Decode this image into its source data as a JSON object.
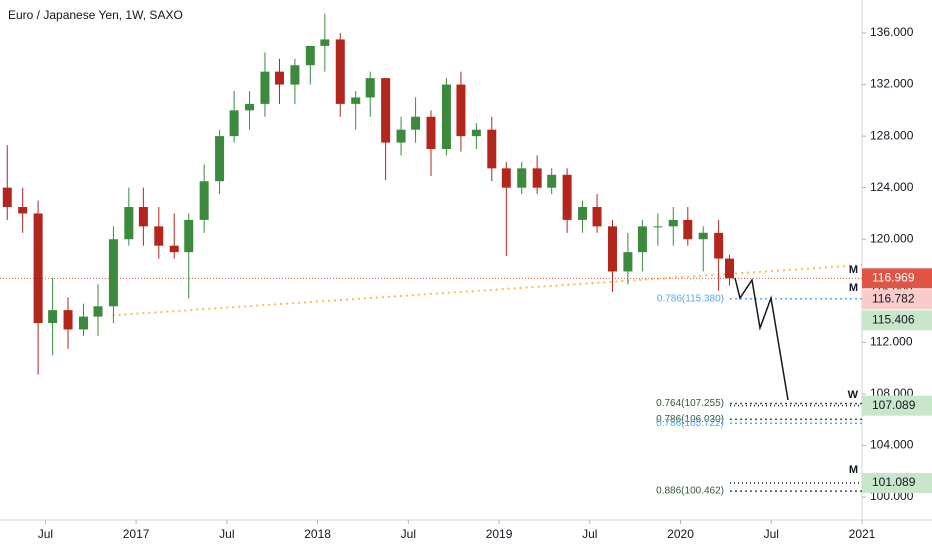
{
  "chart_data": {
    "type": "candlestick",
    "title": "Euro / Japanese Yen, 1W, SAXO",
    "up_color": "#3b8a3e",
    "down_color": "#b3261e",
    "x": [
      2016.29,
      2016.375,
      2016.46,
      2016.54,
      2016.625,
      2016.71,
      2016.79,
      2016.875,
      2016.96,
      2017.04,
      2017.125,
      2017.21,
      2017.29,
      2017.375,
      2017.46,
      2017.54,
      2017.625,
      2017.71,
      2017.79,
      2017.875,
      2017.96,
      2018.04,
      2018.125,
      2018.21,
      2018.29,
      2018.375,
      2018.46,
      2018.54,
      2018.625,
      2018.71,
      2018.79,
      2018.875,
      2018.96,
      2019.04,
      2019.125,
      2019.21,
      2019.29,
      2019.375,
      2019.46,
      2019.54,
      2019.625,
      2019.71,
      2019.79,
      2019.875,
      2019.96,
      2020.04,
      2020.125,
      2020.21,
      2020.27
    ],
    "open": [
      124.0,
      122.5,
      122.0,
      113.5,
      114.5,
      113.0,
      114.0,
      114.8,
      120.0,
      122.5,
      121.0,
      119.5,
      119.0,
      121.5,
      124.5,
      128.0,
      130.0,
      130.5,
      133.0,
      132.0,
      133.5,
      135.0,
      135.5,
      130.5,
      131.0,
      132.5,
      127.5,
      128.5,
      129.5,
      127.0,
      132.0,
      128.0,
      128.5,
      125.5,
      124.0,
      125.5,
      124.0,
      125.0,
      121.5,
      122.5,
      121.0,
      117.5,
      119.0,
      121.0,
      121.0,
      121.5,
      120.0,
      120.5,
      118.5
    ],
    "high": [
      127.3,
      124.0,
      123.0,
      117.0,
      115.5,
      115.0,
      116.5,
      121.0,
      124.0,
      124.0,
      122.5,
      122.0,
      122.0,
      125.8,
      128.5,
      131.5,
      131.5,
      134.5,
      134.0,
      134.0,
      135.0,
      137.5,
      136.0,
      131.5,
      133.0,
      132.5,
      129.5,
      131.0,
      130.0,
      132.5,
      133.0,
      129.0,
      129.5,
      126.0,
      126.0,
      126.5,
      125.5,
      125.5,
      123.0,
      123.5,
      121.5,
      120.5,
      121.5,
      122.0,
      122.5,
      122.5,
      121.0,
      121.5,
      118.8
    ],
    "low": [
      121.5,
      120.5,
      109.5,
      111.0,
      111.5,
      112.5,
      112.5,
      113.5,
      119.5,
      119.5,
      118.5,
      118.5,
      115.4,
      120.5,
      123.5,
      127.5,
      128.5,
      129.5,
      130.5,
      130.5,
      132.0,
      133.0,
      129.5,
      128.5,
      129.5,
      124.6,
      126.5,
      127.5,
      124.9,
      126.5,
      126.8,
      127.0,
      124.5,
      118.7,
      123.5,
      123.5,
      123.5,
      120.5,
      120.5,
      120.5,
      115.9,
      116.5,
      117.5,
      119.5,
      119.5,
      119.5,
      117.5,
      116.0,
      116.4
    ],
    "close": [
      122.5,
      122.0,
      113.5,
      114.5,
      113.0,
      114.0,
      114.8,
      120.0,
      122.5,
      121.0,
      119.5,
      119.0,
      121.5,
      124.5,
      128.0,
      130.0,
      130.5,
      133.0,
      132.0,
      133.5,
      135.0,
      135.5,
      130.5,
      131.0,
      132.5,
      127.5,
      128.5,
      129.5,
      127.0,
      132.0,
      128.0,
      128.5,
      125.5,
      124.0,
      125.5,
      124.0,
      125.0,
      121.5,
      122.5,
      121.0,
      117.5,
      119.0,
      121.0,
      121.0,
      121.5,
      120.0,
      120.5,
      118.5,
      116.97
    ],
    "xlim": [
      2016.25,
      2021.0
    ],
    "ylim": [
      98.22,
      138.56
    ],
    "xticks": [
      {
        "value": 2016.5,
        "label": "Jul"
      },
      {
        "value": 2017.0,
        "label": "2017"
      },
      {
        "value": 2017.5,
        "label": "Jul"
      },
      {
        "value": 2018.0,
        "label": "2018"
      },
      {
        "value": 2018.5,
        "label": "Jul"
      },
      {
        "value": 2019.0,
        "label": "2019"
      },
      {
        "value": 2019.5,
        "label": "Jul"
      },
      {
        "value": 2020.0,
        "label": "2020"
      },
      {
        "value": 2020.5,
        "label": "Jul"
      },
      {
        "value": 2021.0,
        "label": "2021"
      }
    ],
    "yticks": [
      {
        "value": 100,
        "label": "100.000"
      },
      {
        "value": 104,
        "label": "104.000"
      },
      {
        "value": 108,
        "label": "108.000"
      },
      {
        "value": 112,
        "label": "112.000"
      },
      {
        "value": 116,
        "label": "116.000"
      },
      {
        "value": 120,
        "label": "120.000"
      },
      {
        "value": 124,
        "label": "124.000"
      },
      {
        "value": 128,
        "label": "128.000"
      },
      {
        "value": 132,
        "label": "132.000"
      },
      {
        "value": 136,
        "label": "136.000"
      }
    ],
    "trendline": {
      "x": [
        2016.87,
        2021.0
      ],
      "values": [
        114.1,
        118.0
      ],
      "color": "#f5c04a"
    },
    "fib_levels": [
      {
        "text": "0.786(115.380)",
        "value": 115.38,
        "color": "#5aa9e6"
      },
      {
        "text": "0.764(107.255)",
        "value": 107.255,
        "color": "#2f5e2f"
      },
      {
        "text": "0.786(106.030)",
        "value": 106.03,
        "color": "#2f5e2f"
      },
      {
        "text": "0.786(105.722)",
        "value": 105.722,
        "color": "#5aa9e6"
      },
      {
        "text": "0.886(100.462)",
        "value": 100.462,
        "color": "#2f5e2f"
      }
    ],
    "price_labels": [
      {
        "value": 116.969,
        "color": "#e05545",
        "text_color": "#ffffff",
        "line": "full"
      },
      {
        "value": 116.782,
        "color": "#f9cccc",
        "text_color": "#131722",
        "line": "none"
      },
      {
        "value": 115.406,
        "color": "#c8e6c9",
        "text_color": "#131722",
        "line": "none"
      },
      {
        "value": 107.089,
        "color": "#c8e6c9",
        "text_color": "#131722",
        "line": "short"
      },
      {
        "value": 101.089,
        "color": "#c8e6c9",
        "text_color": "#131722",
        "line": "short"
      }
    ],
    "pattern_marks": [
      {
        "text": "M",
        "value": 117.6
      },
      {
        "text": "M",
        "value": 116.2
      },
      {
        "text": "W",
        "value": 107.9
      },
      {
        "text": "M",
        "value": 102.1
      }
    ]
  }
}
